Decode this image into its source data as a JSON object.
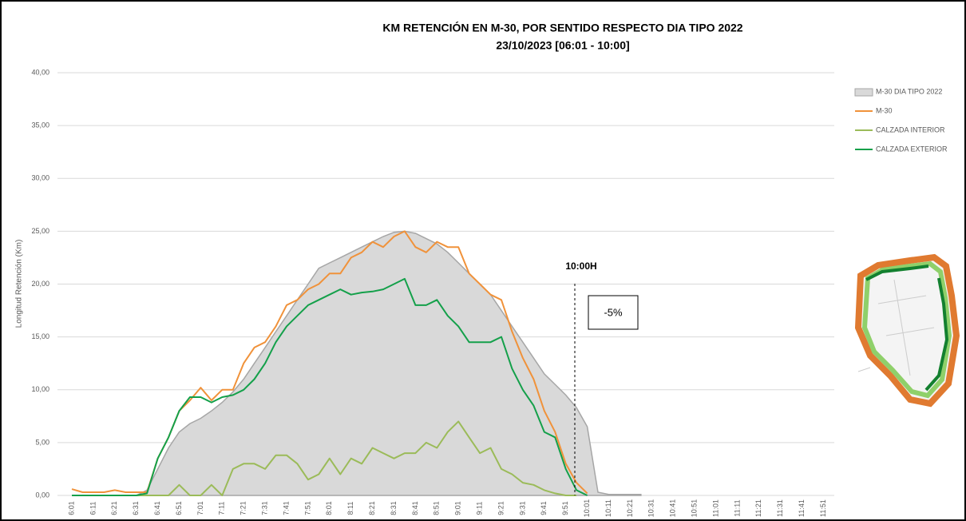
{
  "chart_data": {
    "type": "line",
    "title": "KM RETENCIÓN EN M-30, POR SENTIDO RESPECTO DIA TIPO 2022",
    "subtitle": "23/10/2023    [06:01 - 10:00]",
    "y_label": "Longitud Retención (Km)",
    "annotations": [
      "10:00H",
      "-5%"
    ],
    "categories": [
      "6:01",
      null,
      "6:11",
      null,
      "6:21",
      null,
      "6:31",
      null,
      "6:41",
      null,
      "6:51",
      null,
      "7:01",
      null,
      "7:11",
      null,
      "7:21",
      null,
      "7:31",
      null,
      "7:41",
      null,
      "7:51",
      null,
      "8:01",
      null,
      "8:11",
      null,
      "8:21",
      null,
      "8:31",
      null,
      "8:41",
      null,
      "8:51",
      null,
      "9:01",
      null,
      "9:11",
      null,
      "9:21",
      null,
      "9:31",
      null,
      "9:41",
      null,
      "9:51",
      null,
      "10:01",
      null,
      "10:11",
      null,
      "10:21",
      null,
      "10:31",
      null,
      "10:41",
      null,
      "10:51",
      null,
      "11:01",
      null,
      "11:11",
      null,
      "11:21",
      null,
      "11:31",
      null,
      "11:41",
      null,
      "11:51",
      null
    ],
    "series": [
      {
        "name": "M-30 DIA TIPO 2022",
        "color": "#d9d9d9",
        "area": true,
        "values": [
          0,
          0,
          0,
          0,
          0,
          0,
          0,
          0.5,
          2.5,
          4.5,
          6,
          6.8,
          7.3,
          8,
          8.8,
          9.8,
          11,
          12.5,
          14,
          15.5,
          17,
          18.5,
          20,
          21.5,
          22,
          22.5,
          23,
          23.5,
          24,
          24.5,
          24.9,
          25,
          24.8,
          24.3,
          23.8,
          23,
          22,
          21,
          20,
          19,
          17.5,
          16,
          14.5,
          13,
          11.5,
          10.5,
          9.5,
          8.3,
          6.5,
          0.3,
          0.1,
          0.1,
          0.1,
          0.1,
          null,
          null,
          null,
          null,
          null,
          null,
          null,
          null,
          null,
          null,
          null,
          null,
          null,
          null,
          null,
          null,
          null,
          null
        ]
      },
      {
        "name": "M-30",
        "color": "#f0923a",
        "values": [
          0.6,
          0.3,
          0.3,
          0.3,
          0.5,
          0.3,
          0.3,
          0.3,
          3.5,
          5.5,
          8,
          9,
          10.2,
          9,
          10,
          10,
          12.5,
          14,
          14.5,
          16,
          18,
          18.5,
          19.5,
          20,
          21,
          21,
          22.5,
          23,
          24,
          23.5,
          24.5,
          25,
          23.5,
          23,
          24,
          23.5,
          23.5,
          21,
          20,
          19,
          18.5,
          15.5,
          13,
          11,
          8,
          6,
          3,
          1.2,
          0.2,
          null,
          null,
          null,
          null,
          null,
          null,
          null,
          null,
          null,
          null,
          null,
          null,
          null,
          null,
          null,
          null,
          null,
          null,
          null,
          null,
          null,
          null,
          null
        ]
      },
      {
        "name": "CALZADA INTERIOR",
        "color": "#9bbb59",
        "values": [
          0,
          0,
          0,
          0,
          0,
          0,
          0,
          0,
          0,
          0,
          1,
          0,
          0,
          1,
          0,
          2.5,
          3,
          3,
          2.5,
          3.8,
          3.8,
          3,
          1.5,
          2,
          3.5,
          2,
          3.5,
          3,
          4.5,
          4,
          3.5,
          4,
          4,
          5,
          4.5,
          6,
          7,
          5.5,
          4,
          4.5,
          2.5,
          2,
          1.2,
          1,
          0.5,
          0.2,
          0,
          0,
          null,
          null,
          null,
          null,
          null,
          null,
          null,
          null,
          null,
          null,
          null,
          null,
          null,
          null,
          null,
          null,
          null,
          null,
          null,
          null,
          null,
          null,
          null,
          null
        ]
      },
      {
        "name": "CALZADA EXTERIOR",
        "color": "#14a04a",
        "values": [
          0,
          0,
          0,
          0,
          0,
          0,
          0,
          0.2,
          3.5,
          5.5,
          8,
          9.3,
          9.3,
          8.8,
          9.3,
          9.5,
          10,
          11,
          12.5,
          14.5,
          16,
          17,
          18,
          18.5,
          19,
          19.5,
          19,
          19.2,
          19.3,
          19.5,
          20,
          20.5,
          18,
          18,
          18.5,
          17,
          16,
          14.5,
          14.5,
          14.5,
          15,
          12,
          10,
          8.5,
          6,
          5.5,
          2.5,
          0.5,
          0,
          null,
          null,
          null,
          null,
          null,
          null,
          null,
          null,
          null,
          null,
          null,
          null,
          null,
          null,
          null,
          null,
          null,
          null,
          null,
          null,
          null,
          null,
          null
        ]
      }
    ],
    "ylim": [
      0,
      40
    ],
    "yticks": [
      {
        "value": 0,
        "label": "0,00"
      },
      {
        "value": 5,
        "label": "5,00"
      },
      {
        "value": 10,
        "label": "10,00"
      },
      {
        "value": 15,
        "label": "15,00"
      },
      {
        "value": 20,
        "label": "20,00"
      },
      {
        "value": 25,
        "label": "25,00"
      },
      {
        "value": 30,
        "label": "30,00"
      },
      {
        "value": 35,
        "label": "35,00"
      },
      {
        "value": 40,
        "label": "40,00"
      }
    ],
    "grid": true,
    "legend": "right"
  }
}
